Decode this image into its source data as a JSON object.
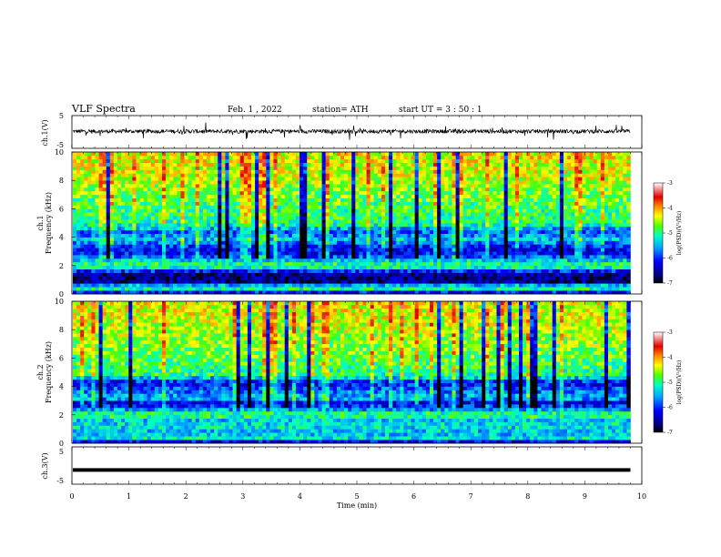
{
  "header": {
    "title": "VLF  Spectra",
    "date": "Feb. 1  , 2022",
    "station": "station= ATH",
    "start_ut": "start  UT  =   3  : 50 : 1"
  },
  "chart_data": [
    {
      "type": "line",
      "name": "ch1-waveform",
      "ylabel": "ch.1(V)",
      "yticks": [
        "5",
        "-5"
      ],
      "ylim": [
        -5,
        5
      ],
      "xlim": [
        0,
        10
      ],
      "data_end_min": 9.8,
      "baseline": 0.2,
      "noise_amplitude": 0.6,
      "spike_amplitude": 2.4,
      "color": "#000000"
    },
    {
      "type": "heatmap",
      "name": "ch1-spectrogram",
      "ylabel": "Frequency (kHz)",
      "channel_label": "ch.1",
      "yticks": [
        "0",
        "2",
        "4",
        "6",
        "8",
        "10"
      ],
      "ylim": [
        0,
        10
      ],
      "xlim": [
        0,
        10
      ],
      "data_end_min": 9.8,
      "colorbar": {
        "label": "log(PSD)(V²/Hz)",
        "ticks": [
          "-3",
          "-4",
          "-5",
          "-6",
          "-7"
        ],
        "range": [
          -7,
          -3
        ]
      },
      "frequency_profile_kHz": [
        [
          0.0,
          -6.9
        ],
        [
          0.3,
          -5.0
        ],
        [
          0.6,
          -5.4
        ],
        [
          0.9,
          -6.7
        ],
        [
          1.5,
          -6.5
        ],
        [
          1.9,
          -5.1
        ],
        [
          2.2,
          -5.0
        ],
        [
          2.6,
          -5.8
        ],
        [
          3.0,
          -6.3
        ],
        [
          3.4,
          -6.0
        ],
        [
          3.8,
          -5.4
        ],
        [
          4.4,
          -5.8
        ],
        [
          5.0,
          -5.0
        ],
        [
          6.0,
          -4.9
        ],
        [
          7.0,
          -4.7
        ],
        [
          8.0,
          -4.5
        ],
        [
          9.0,
          -4.4
        ],
        [
          10.0,
          -4.3
        ]
      ]
    },
    {
      "type": "heatmap",
      "name": "ch2-spectrogram",
      "ylabel": "Frequency (kHz)",
      "channel_label": "ch.2",
      "yticks": [
        "0",
        "2",
        "4",
        "6",
        "8",
        "10"
      ],
      "ylim": [
        0,
        10
      ],
      "xlim": [
        0,
        10
      ],
      "data_end_min": 9.8,
      "colorbar": {
        "label": "log(PSD)(V²/Hz)",
        "ticks": [
          "-3",
          "-4",
          "-5",
          "-6",
          "-7"
        ],
        "range": [
          -7,
          -3
        ]
      },
      "frequency_profile_kHz": [
        [
          0.0,
          -6.9
        ],
        [
          0.3,
          -5.2
        ],
        [
          0.7,
          -5.5
        ],
        [
          1.2,
          -5.3
        ],
        [
          1.7,
          -5.4
        ],
        [
          2.0,
          -4.8
        ],
        [
          2.4,
          -5.6
        ],
        [
          2.8,
          -6.4
        ],
        [
          3.2,
          -5.4
        ],
        [
          3.8,
          -5.8
        ],
        [
          4.3,
          -6.2
        ],
        [
          4.8,
          -5.0
        ],
        [
          6.0,
          -4.8
        ],
        [
          7.0,
          -4.6
        ],
        [
          8.0,
          -4.5
        ],
        [
          9.0,
          -4.4
        ],
        [
          10.0,
          -4.3
        ]
      ]
    },
    {
      "type": "line",
      "name": "ch3-waveform",
      "ylabel": "ch.3(V)",
      "yticks": [
        "5",
        "-5"
      ],
      "ylim": [
        -5,
        5
      ],
      "xlim": [
        0,
        10
      ],
      "data_end_min": 9.8,
      "baseline": -1.2,
      "color": "#000000"
    }
  ],
  "xaxis": {
    "label": "Time  (min)",
    "ticks": [
      "0",
      "1",
      "2",
      "3",
      "4",
      "5",
      "6",
      "7",
      "8",
      "9",
      "10"
    ]
  }
}
